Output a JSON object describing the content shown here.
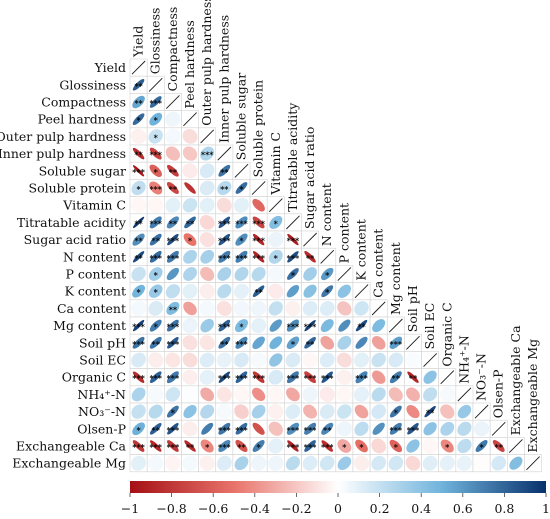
{
  "chart_data": {
    "type": "heatmap",
    "shape": "lower-triangle correlogram with ellipses",
    "variables": [
      "Yield",
      "Glossiness",
      "Compactness",
      "Peel hardness",
      "Outer pulp hardness",
      "Inner pulp hardness",
      "Soluble sugar",
      "Soluble protein",
      "Vitamin C",
      "Titratable acidity",
      "Sugar acid ratio",
      "N content",
      "P content",
      "K content",
      "Ca content",
      "Mg content",
      "Soil pH",
      "Soil EC",
      "Organic C",
      "NH₄⁺-N",
      "NO₃⁻-N",
      "Olsen-P",
      "Exchangeable Ca",
      "Exchangeable Mg"
    ],
    "values": [
      [
        0.83
      ],
      [
        0.55,
        0.78
      ],
      [
        0.78,
        0.5,
        0.06
      ],
      [
        -0.05,
        0.19,
        0.04,
        -0.12
      ],
      [
        -0.85,
        -0.74,
        -0.23,
        -0.2,
        0.27
      ],
      [
        -0.97,
        -0.59,
        -0.77,
        -0.07,
        0.14,
        0.75
      ],
      [
        0.22,
        -0.45,
        -0.72,
        -0.83,
        0.13,
        0.25,
        0.77
      ],
      [
        -0.03,
        -0.03,
        0.1,
        0.18,
        0.1,
        -0.12,
        0.1,
        -0.56
      ],
      [
        0.97,
        0.7,
        0.66,
        0.78,
        -0.14,
        0.86,
        0.65,
        -0.73,
        0.43
      ],
      [
        0.64,
        0.75,
        0.89,
        -0.5,
        -0.11,
        0.86,
        0.64,
        -0.89,
        0.07,
        -0.93
      ],
      [
        0.91,
        0.77,
        0.72,
        0.29,
        0.31,
        0.71,
        0.71,
        -0.9,
        0.27,
        0.89,
        -0.86
      ],
      [
        0.19,
        0.33,
        0.61,
        0.28,
        -0.24,
        0.3,
        0.27,
        0.25,
        0.04,
        0.76,
        0.32,
        0.6
      ],
      [
        0.49,
        0.36,
        0.22,
        0.1,
        -0.06,
        0.24,
        0.09,
        0.83,
        -0.07,
        0.58,
        0.41,
        0.73,
        0.4
      ],
      [
        0.04,
        0.13,
        0.44,
        -0.34,
        0.04,
        -0.11,
        0.05,
        0.06,
        0.21,
        -0.05,
        0.12,
        0.12,
        -0.21,
        0.17
      ],
      [
        0.93,
        0.71,
        0.75,
        0.07,
        0.35,
        0.8,
        0.45,
        0.09,
        0.59,
        0.65,
        0.94,
        0.46,
        0.64,
        0.89,
        0.45
      ],
      [
        0.75,
        0.73,
        0.84,
        -0.11,
        -0.09,
        0.75,
        0.68,
        0.55,
        0.5,
        0.57,
        0.79,
        -0.33,
        0.3,
        0.67,
        -0.34,
        0.58
      ],
      [
        0.14,
        -0.06,
        -0.09,
        -0.12,
        0.12,
        0.08,
        0.14,
        0.03,
        0.38,
        0.13,
        -0.03,
        0.12,
        -0.12,
        0.1,
        0.19,
        0.14,
        0.02
      ],
      [
        -0.85,
        0.81,
        0.72,
        -0.06,
        0.09,
        0.91,
        0.81,
        -0.8,
        0.14,
        0.72,
        -0.76,
        0.86,
        -0.05,
        0.69,
        -0.36,
        0.71,
        -0.89,
        0.4
      ],
      [
        0.29,
        0.03,
        0.17,
        0.01,
        -0.3,
        -0.09,
        -0.03,
        -0.4,
        -0.03,
        -0.31,
        0.06,
        -0.07,
        -0.03,
        0.09,
        0.24,
        -0.24,
        -0.28,
        0.22,
        0.03
      ],
      [
        0.2,
        0.25,
        0.74,
        0.4,
        0.26,
        0.03,
        -0.17,
        0.31,
        -0.05,
        0.12,
        -0.27,
        0.13,
        0.18,
        -0.33,
        0.15,
        0.74,
        -0.42,
        0.91,
        -0.22,
        0.36
      ],
      [
        0.51,
        0.82,
        0.86,
        -0.06,
        0.71,
        0.74,
        0.77,
        -0.67,
        -0.22,
        0.64,
        0.7,
        0.67,
        0.06,
        0.23,
        0.63,
        0.71,
        0.85,
        0.4,
        0.29,
        0.24,
        0.07
      ],
      [
        -0.8,
        -0.87,
        -0.8,
        -0.86,
        -0.43,
        0.67,
        -0.66,
        0.7,
        0.09,
        -0.9,
        0.81,
        -0.84,
        -0.31,
        -0.52,
        -0.14,
        -0.58,
        0.4,
        -0.03,
        -0.43,
        0.23,
        0.72,
        -0.73
      ],
      [
        0.1,
        0.04,
        -0.04,
        0.04,
        -0.05,
        0.12,
        0.3,
        0.06,
        0.06,
        0.24,
        0.12,
        0.16,
        0.35,
        -0.06,
        0.15,
        0.16,
        -0.14,
        0.11,
        0.09,
        0.08,
        -0.01,
        0.15,
        0.43
      ]
    ],
    "significance": [
      [
        "**"
      ],
      [
        "**",
        "***"
      ],
      [
        "*",
        "*",
        ""
      ],
      [
        "",
        "*",
        "",
        ""
      ],
      [
        "**",
        "***",
        "",
        "",
        "***"
      ],
      [
        "***",
        "*",
        "**",
        "",
        "",
        "**"
      ],
      [
        "*",
        "***",
        "**",
        "",
        "",
        "**",
        "*"
      ],
      [
        "",
        "",
        "",
        "",
        "",
        "",
        "",
        ""
      ],
      [
        "**",
        "***",
        "**",
        "**",
        "",
        "***",
        "***",
        "***",
        "*"
      ],
      [
        "**",
        "**",
        "***",
        "*",
        "",
        "***",
        "*",
        "***",
        "",
        "***"
      ],
      [
        "**",
        "***",
        "***",
        "",
        "",
        "***",
        "***",
        "***",
        "*",
        "***",
        "**"
      ],
      [
        "",
        "*",
        "",
        "",
        "",
        "",
        "",
        "",
        "",
        "*",
        "",
        "*"
      ],
      [
        "*",
        "*",
        "",
        "",
        "",
        "",
        "",
        "**",
        "",
        "",
        "",
        "*",
        ""
      ],
      [
        "",
        "",
        "**",
        "",
        "",
        "",
        "",
        "",
        "",
        "",
        "",
        "",
        "",
        ""
      ],
      [
        "***",
        "*",
        "***",
        "",
        "",
        "***",
        "*",
        "",
        "",
        "***",
        "***",
        "",
        "",
        "**",
        ""
      ],
      [
        "***",
        "**",
        "***",
        "",
        "",
        "**",
        "***",
        "",
        "",
        "*",
        "**",
        "",
        "",
        "",
        "",
        "***"
      ],
      [
        "",
        "",
        "",
        "",
        "",
        "",
        "",
        "",
        "",
        "",
        "",
        "",
        "",
        "",
        "",
        "",
        ""
      ],
      [
        "***",
        "***",
        "***",
        "",
        "",
        "***",
        "***",
        "***",
        "",
        "***",
        "***",
        "***",
        "",
        "***",
        "",
        "**",
        "**",
        ""
      ],
      [
        "",
        "",
        "",
        "",
        "",
        "",
        "",
        "",
        "",
        "",
        "",
        "",
        "",
        "",
        "",
        "",
        "",
        "",
        ""
      ],
      [
        "",
        "",
        "*",
        "",
        "",
        "",
        "",
        "",
        "",
        "",
        "",
        "",
        "",
        "",
        "",
        "*",
        "",
        "**",
        "",
        ""
      ],
      [
        "*",
        "**",
        "***",
        "",
        "",
        "***",
        "***",
        "",
        "",
        "***",
        "***",
        "**",
        "",
        "",
        "",
        "***",
        "***",
        "",
        "",
        "",
        ""
      ],
      [
        "***",
        "***",
        "***",
        "**",
        "*",
        "***",
        "**",
        "*",
        "",
        "***",
        "***",
        "***",
        "*",
        "*",
        "",
        "*",
        "",
        "",
        "*",
        "",
        "*",
        "**"
      ],
      [
        "",
        "",
        "",
        "",
        "",
        "",
        "",
        "",
        "",
        "",
        "",
        "",
        "",
        "",
        "",
        "",
        "",
        "",
        "",
        "",
        "",
        "",
        ""
      ]
    ],
    "color_scale": {
      "min": -1,
      "max": 1,
      "stops": [
        {
          "value": -1,
          "color": "#a50f15"
        },
        {
          "value": -0.5,
          "color": "#e8736a"
        },
        {
          "value": 0,
          "color": "#ffffff"
        },
        {
          "value": 0.5,
          "color": "#6fb3dc"
        },
        {
          "value": 1,
          "color": "#08306b"
        }
      ]
    },
    "colorbar_ticks": [
      "−1",
      "−0.8",
      "−0.6",
      "−0.4",
      "−0.2",
      "0",
      "0.2",
      "0.4",
      "0.6",
      "0.8",
      "1"
    ]
  }
}
